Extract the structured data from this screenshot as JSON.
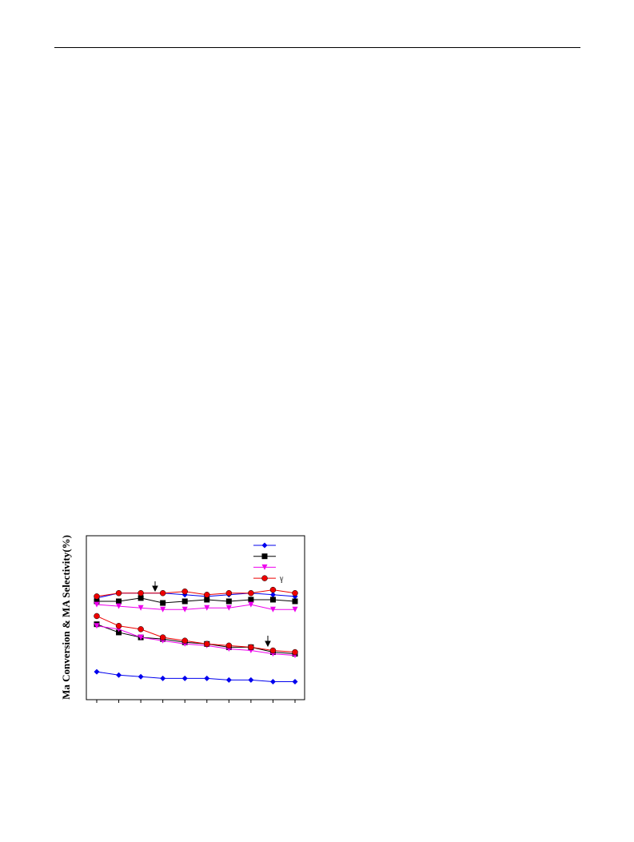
{
  "chart_data": {
    "type": "line",
    "y_label": "Ma Conversion & MA Selectivity(%)",
    "categories": [
      null,
      null,
      null,
      null,
      null,
      null,
      null,
      null,
      null,
      null
    ],
    "ylim": [
      0,
      100
    ],
    "series": [
      {
        "name": null,
        "color": "#0000ee",
        "marker": "diamond",
        "selectivity": [
          62,
          65,
          65,
          65,
          64,
          63,
          64,
          65,
          64,
          63
        ],
        "conversion": [
          17,
          15,
          14,
          13,
          13,
          13,
          12,
          12,
          11,
          11
        ]
      },
      {
        "name": null,
        "color": "#000000",
        "marker": "square",
        "selectivity": [
          60,
          60,
          62,
          59,
          60,
          61,
          60,
          61,
          61,
          60
        ],
        "conversion": [
          46,
          41,
          38,
          37,
          35,
          34,
          32,
          32,
          29,
          28
        ]
      },
      {
        "name": null,
        "color": "#ee00ee",
        "marker": "triangle-down",
        "selectivity": [
          58,
          57,
          56,
          55,
          55,
          56,
          56,
          58,
          55,
          55
        ],
        "conversion": [
          45,
          43,
          38,
          36,
          34,
          33,
          31,
          30,
          28,
          27
        ]
      },
      {
        "name": "γ",
        "color": "#ee0000",
        "marker": "circle",
        "selectivity": [
          63,
          65,
          65,
          65,
          66,
          64,
          65,
          65,
          67,
          65
        ],
        "conversion": [
          51,
          45,
          43,
          38,
          36,
          34,
          33,
          32,
          30,
          29
        ]
      }
    ]
  }
}
